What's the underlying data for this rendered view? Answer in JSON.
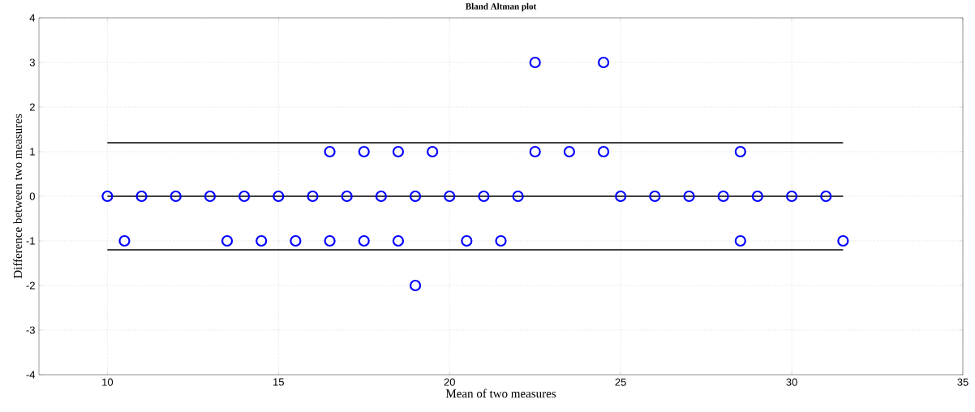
{
  "chart_data": {
    "type": "scatter",
    "title": "Bland Altman plot",
    "xlabel": "Mean of two measures",
    "ylabel": "Difference between two measures",
    "x": [
      10,
      11,
      12,
      13,
      14,
      15,
      16,
      17,
      18,
      19,
      20,
      21,
      22,
      25,
      26,
      27,
      28,
      29,
      30,
      31,
      10.5,
      13.5,
      14.5,
      15.5,
      16.5,
      17.5,
      18.5,
      20.5,
      21.5,
      28.5,
      31.5,
      16.5,
      17.5,
      18.5,
      19.5,
      22.5,
      23.5,
      24.5,
      28.5,
      22.5,
      24.5,
      19
    ],
    "values": [
      0,
      0,
      0,
      0,
      0,
      0,
      0,
      0,
      0,
      0,
      0,
      0,
      0,
      0,
      0,
      0,
      0,
      0,
      0,
      0,
      -1,
      -1,
      -1,
      -1,
      -1,
      -1,
      -1,
      -1,
      -1,
      -1,
      -1,
      1,
      1,
      1,
      1,
      1,
      1,
      1,
      1,
      3,
      3,
      -2
    ],
    "color": "#0000ff",
    "marker": "circle",
    "xlim": [
      8,
      35
    ],
    "xticks": [
      10,
      15,
      20,
      25,
      30,
      35
    ],
    "ylim": [
      -4,
      4
    ],
    "yticks": [
      -4,
      -3,
      -2,
      -1,
      0,
      1,
      2,
      3,
      4
    ],
    "grid": true,
    "ref_lines": [
      {
        "axis": "y",
        "value": 0,
        "color": "#000000"
      },
      {
        "axis": "y",
        "value": 1.2,
        "color": "#000000"
      },
      {
        "axis": "y",
        "value": -1.2,
        "color": "#000000"
      }
    ]
  }
}
